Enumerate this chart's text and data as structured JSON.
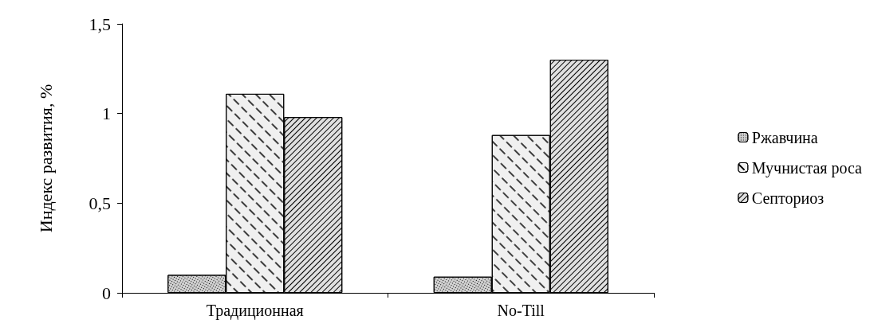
{
  "chart_data": {
    "type": "bar",
    "ylabel": "Индекс развития, %",
    "categories": [
      "Традиционная",
      "No-Till"
    ],
    "series": [
      {
        "name": "Ржавчина",
        "color": "#d0d0d0",
        "values": [
          0.1,
          0.09
        ]
      },
      {
        "name": "Мучнистая роса",
        "color": "#f0f0f0",
        "values": [
          1.11,
          0.88
        ]
      },
      {
        "name": "Септориоз",
        "color": "#e0e0e0",
        "values": [
          0.98,
          1.3
        ]
      }
    ],
    "ylim": [
      0,
      1.5
    ],
    "yticks": [
      0,
      {
        "value": 0.5,
        "label": "0,5"
      },
      1,
      {
        "value": 1.5,
        "label": "1,5"
      }
    ],
    "grid": false,
    "legend": "right"
  }
}
